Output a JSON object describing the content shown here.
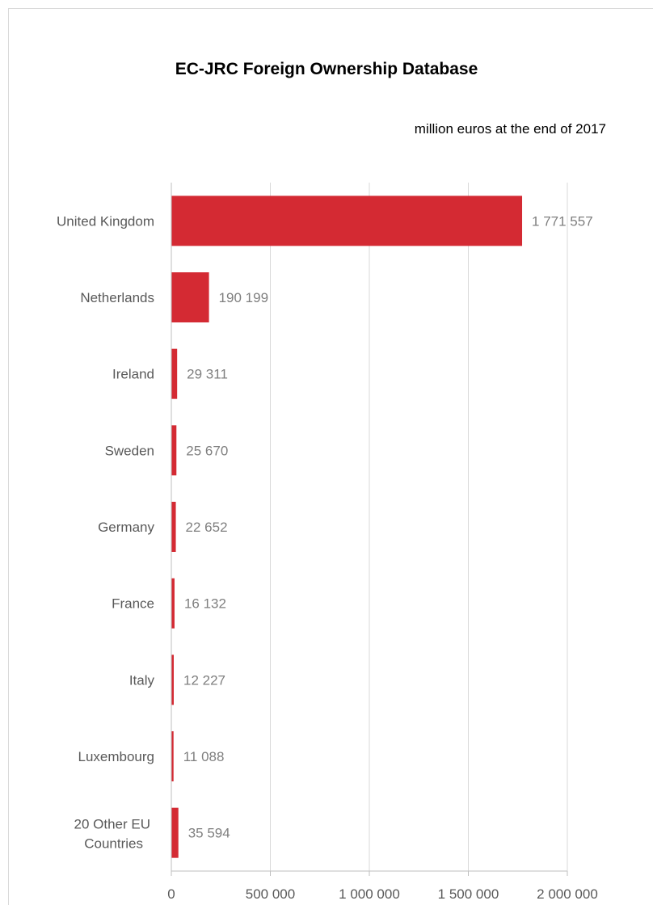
{
  "chart_data": {
    "type": "bar",
    "orientation": "horizontal",
    "title": "EC-JRC Foreign Ownership Database",
    "subtitle": "million euros at the end of 2017",
    "categories": [
      "United Kingdom",
      "Netherlands",
      "Ireland",
      "Sweden",
      "Germany",
      "France",
      "Italy",
      "Luxembourg",
      "20 Other EU Countries"
    ],
    "values": [
      1771557,
      190199,
      29311,
      25670,
      22652,
      16132,
      12227,
      11088,
      35594
    ],
    "data_labels": [
      "1 771 557",
      "190 199",
      "29 311",
      "25 670",
      "22 652",
      "16 132",
      "12 227",
      "11 088",
      "35 594"
    ],
    "xlim": [
      0,
      2000000
    ],
    "xticks": [
      0,
      500000,
      1000000,
      1500000,
      2000000
    ],
    "xtick_labels": [
      "0",
      "500 000",
      "1 000 000",
      "1 500 000",
      "2 000 000"
    ],
    "bar_color": "#d42a33",
    "grid": "vertical",
    "legend": "none"
  }
}
